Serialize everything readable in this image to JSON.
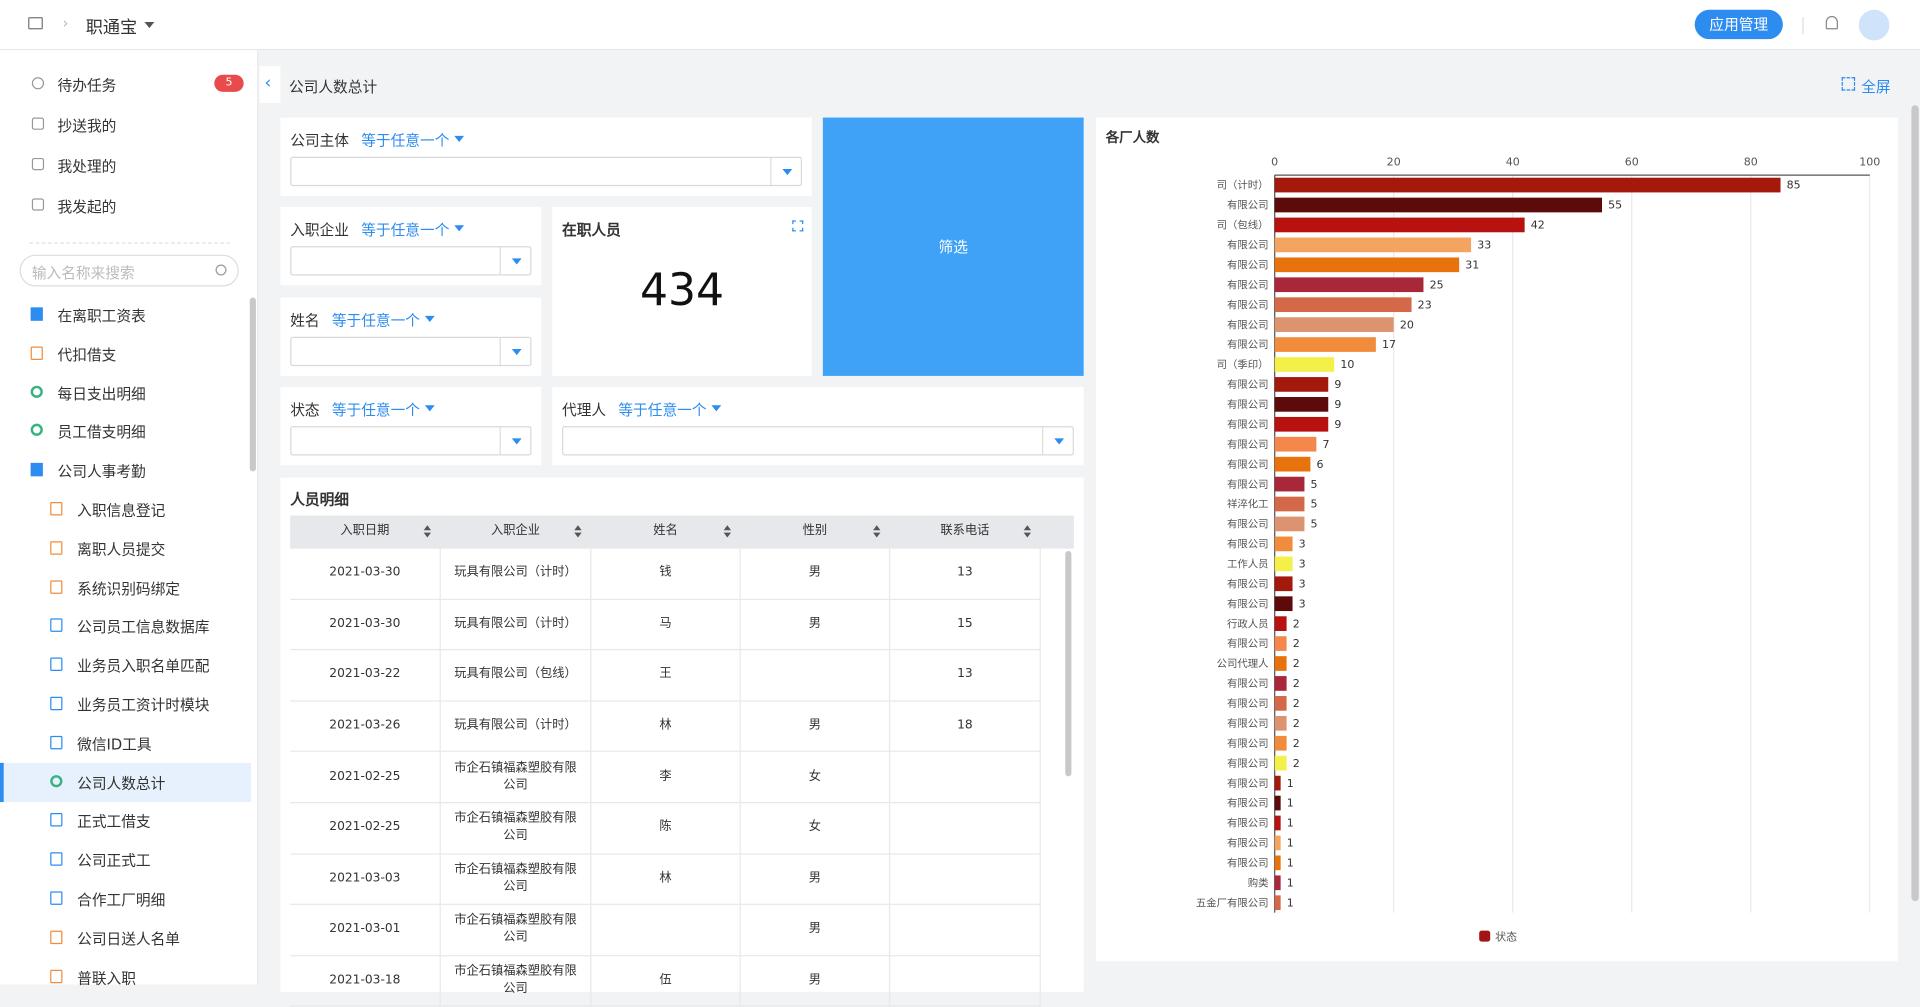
{
  "header": {
    "app": "职通宝",
    "button": "应用管理"
  },
  "sidebar": {
    "tasks": [
      {
        "label": "待办任务",
        "badge": 5
      },
      {
        "label": "抄送我的"
      },
      {
        "label": "我处理的"
      },
      {
        "label": "我发起的"
      }
    ],
    "search_placeholder": "输入名称来搜索",
    "menu": [
      {
        "label": "在离职工资表",
        "level": 0,
        "icon": "folder"
      },
      {
        "label": "代扣借支",
        "level": 0,
        "icon": "pen"
      },
      {
        "label": "每日支出明细",
        "level": 0,
        "icon": "ring"
      },
      {
        "label": "员工借支明细",
        "level": 0,
        "icon": "ring"
      },
      {
        "label": "公司人事考勤",
        "level": 0,
        "icon": "open-folder"
      },
      {
        "label": "入职信息登记",
        "level": 1,
        "icon": "doc-orange"
      },
      {
        "label": "离职人员提交",
        "level": 1,
        "icon": "doc-orange"
      },
      {
        "label": "系统识别码绑定",
        "level": 1,
        "icon": "doc-orange"
      },
      {
        "label": "公司员工信息数据库",
        "level": 1,
        "icon": "doc-blue"
      },
      {
        "label": "业务员入职名单匹配",
        "level": 1,
        "icon": "doc-blue"
      },
      {
        "label": "业务员工资计时模块",
        "level": 1,
        "icon": "doc-blue"
      },
      {
        "label": "微信ID工具",
        "level": 1,
        "icon": "doc-blue"
      },
      {
        "label": "公司人数总计",
        "level": 1,
        "icon": "ring",
        "active": true
      },
      {
        "label": "正式工借支",
        "level": 1,
        "icon": "doc-blue"
      },
      {
        "label": "公司正式工",
        "level": 1,
        "icon": "doc-blue"
      },
      {
        "label": "合作工厂明细",
        "level": 1,
        "icon": "doc-blue"
      },
      {
        "label": "公司日送人名单",
        "level": 1,
        "icon": "doc-orange"
      },
      {
        "label": "普联入职",
        "level": 1,
        "icon": "doc-orange"
      }
    ]
  },
  "breadcrumb": {
    "title": "公司人数总计",
    "fullscreen": "全屏"
  },
  "filters": [
    {
      "label": "公司主体",
      "op": "等于任意一个"
    },
    {
      "label": "入职企业",
      "op": "等于任意一个"
    },
    {
      "label": "姓名",
      "op": "等于任意一个"
    },
    {
      "label": "状态",
      "op": "等于任意一个"
    },
    {
      "label": "代理人",
      "op": "等于任意一个"
    }
  ],
  "kpi": {
    "title": "在职人员",
    "value": 434
  },
  "filter_button": "筛选",
  "table": {
    "title": "人员明细",
    "columns": [
      "入职日期",
      "入职企业",
      "姓名",
      "性别",
      "联系电话"
    ],
    "rows": [
      [
        "2021-03-30",
        "玩具有限公司（计时）",
        "钱",
        "男",
        "13"
      ],
      [
        "2021-03-30",
        "玩具有限公司（计时）",
        "马",
        "男",
        "15"
      ],
      [
        "2021-03-22",
        "玩具有限公司（包线）",
        "王",
        null,
        "13"
      ],
      [
        "2021-03-26",
        "玩具有限公司（计时）",
        "林",
        "男",
        "18"
      ],
      [
        "2021-02-25",
        "市企石镇福森塑胶有限公司",
        "李",
        "女",
        null
      ],
      [
        "2021-02-25",
        "市企石镇福森塑胶有限公司",
        "陈",
        "女",
        null
      ],
      [
        "2021-03-03",
        "市企石镇福森塑胶有限公司",
        "林",
        "男",
        null
      ],
      [
        "2021-03-01",
        "市企石镇福森塑胶有限公司",
        null,
        "男",
        null
      ],
      [
        "2021-03-18",
        "市企石镇福森塑胶有限公司",
        "伍",
        "男",
        null
      ]
    ]
  },
  "chart_data": {
    "type": "bar",
    "orientation": "horizontal",
    "title": "各厂人数",
    "categories": [
      "司（计时）",
      "有限公司",
      "司（包线）",
      "有限公司",
      "有限公司",
      "有限公司",
      "有限公司",
      "有限公司",
      "有限公司",
      "司（季印）",
      "有限公司",
      "有限公司",
      "有限公司",
      "有限公司",
      "有限公司",
      "有限公司",
      "祥淬化工",
      "有限公司",
      "有限公司",
      "工作人员",
      "有限公司",
      "有限公司",
      "行政人员",
      "有限公司",
      "公司代理人",
      "有限公司",
      "有限公司",
      "有限公司",
      "有限公司",
      "有限公司",
      "有限公司",
      "有限公司",
      "有限公司",
      "有限公司",
      "有限公司",
      "购类",
      "五金厂有限公司"
    ],
    "series": [
      {
        "name": "状态",
        "color": "#a31515",
        "values": [
          85,
          55,
          42,
          33,
          31,
          25,
          23,
          20,
          17,
          10,
          9,
          9,
          9,
          7,
          6,
          5,
          5,
          5,
          3,
          3,
          3,
          3,
          2,
          2,
          2,
          2,
          2,
          2,
          2,
          2,
          1,
          1,
          1,
          1,
          1,
          1,
          1
        ]
      }
    ],
    "colors": [
      "#a31a0d",
      "#5c0a0a",
      "#b81210",
      "#f4a460",
      "#e8730c",
      "#a8283a",
      "#d4694a",
      "#dc9470",
      "#f08c3c",
      "#f4f04a",
      "#a31a0d",
      "#5c0a0a",
      "#b81210",
      "#f4884c",
      "#e8730c",
      "#a8283a",
      "#d4694a",
      "#dc9470",
      "#f08c3c",
      "#f4f04a",
      "#a31a0d",
      "#5c0a0a",
      "#b81210",
      "#f4884c",
      "#e8730c",
      "#a8283a",
      "#d4694a",
      "#dc9470",
      "#f08c3c",
      "#f4f04a",
      "#a31a0d",
      "#5c0a0a",
      "#b81210",
      "#f4a460",
      "#e8730c",
      "#a8283a",
      "#d4694a"
    ],
    "xlim": [
      0,
      100
    ],
    "xticks": [
      0,
      20,
      40,
      60,
      80,
      100
    ],
    "grid": true
  }
}
